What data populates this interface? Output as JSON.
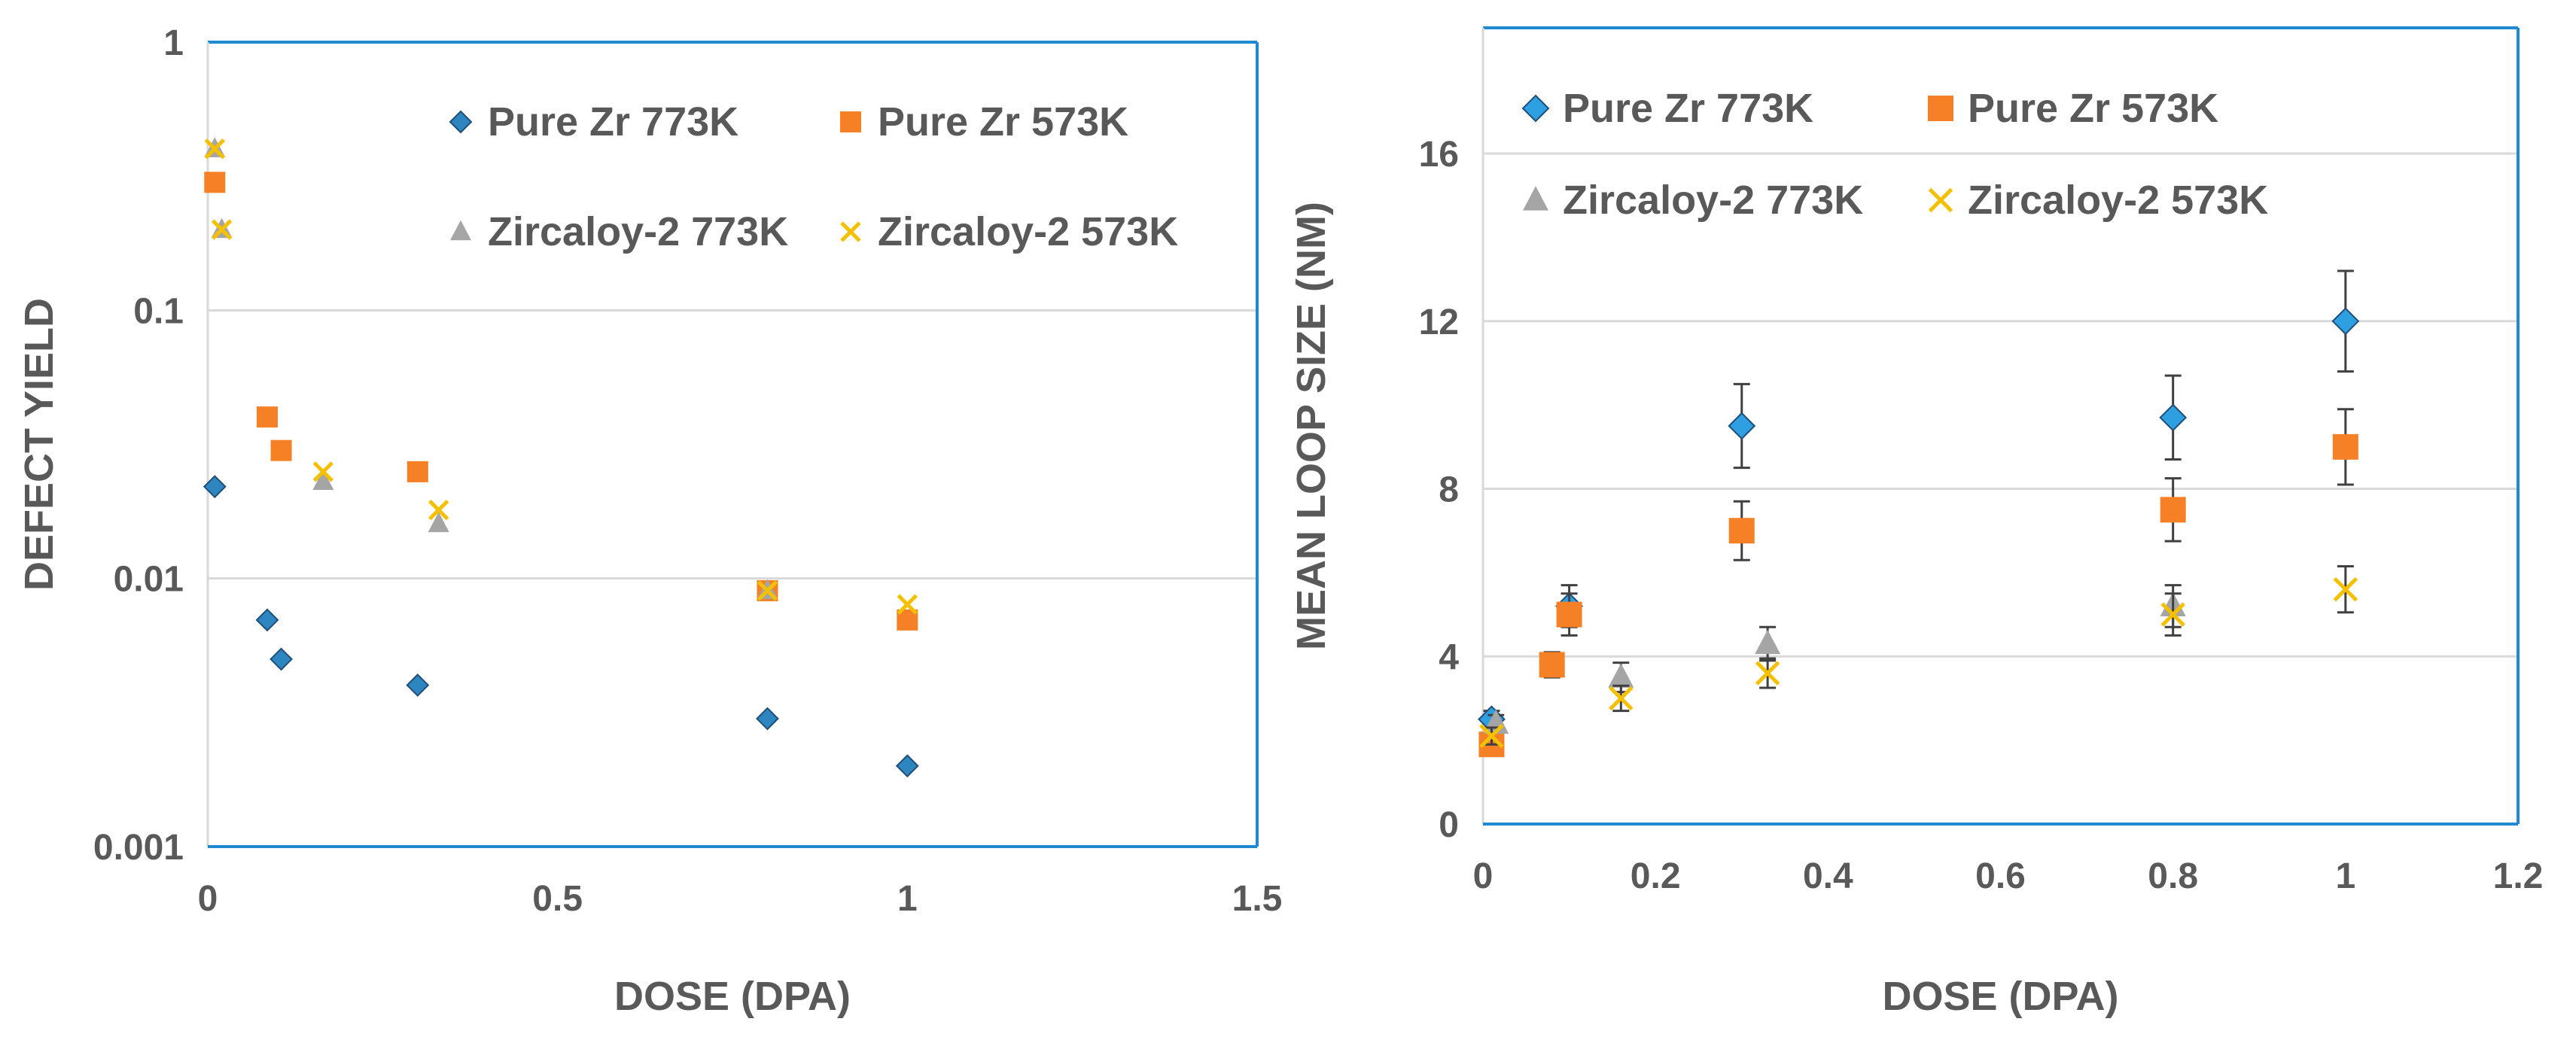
{
  "chart_data": [
    {
      "type": "scatter",
      "title": "",
      "xlabel": "DOSE (DPA)",
      "ylabel": "DEFECT YIELD",
      "yscale": "log",
      "xlim": [
        0,
        1.5
      ],
      "ylim": [
        0.001,
        1
      ],
      "xticks": [
        "0",
        "0.5",
        "1",
        "1.5"
      ],
      "yticks": [
        "1",
        "0.1",
        "0.01",
        "0.001"
      ],
      "grid": "horizontal",
      "legend": "top-right, 2 columns",
      "series": [
        {
          "name": "Pure Zr 773K",
          "marker": "diamond",
          "color": "#2E86C1",
          "points": [
            [
              0.01,
              0.022
            ],
            [
              0.085,
              0.007
            ],
            [
              0.105,
              0.005
            ],
            [
              0.3,
              0.004
            ],
            [
              0.8,
              0.003
            ],
            [
              1.0,
              0.002
            ]
          ]
        },
        {
          "name": "Pure Zr 573K",
          "marker": "square",
          "color": "#F58025",
          "points": [
            [
              0.01,
              0.3
            ],
            [
              0.085,
              0.04
            ],
            [
              0.105,
              0.03
            ],
            [
              0.3,
              0.025
            ],
            [
              0.8,
              0.009
            ],
            [
              1.0,
              0.007
            ]
          ]
        },
        {
          "name": "Zircaloy-2 773K",
          "marker": "triangle",
          "color": "#A5A5A5",
          "points": [
            [
              0.01,
              0.4
            ],
            [
              0.02,
              0.2
            ],
            [
              0.165,
              0.023
            ],
            [
              0.33,
              0.016
            ],
            [
              0.8,
              0.009
            ]
          ]
        },
        {
          "name": "Zircaloy-2 573K",
          "marker": "x",
          "color": "#F5C000",
          "points": [
            [
              0.01,
              0.4
            ],
            [
              0.02,
              0.2
            ],
            [
              0.165,
              0.025
            ],
            [
              0.33,
              0.018
            ],
            [
              0.8,
              0.009
            ],
            [
              1.0,
              0.008
            ]
          ]
        }
      ]
    },
    {
      "type": "scatter",
      "title": "",
      "xlabel": "DOSE (DPA)",
      "ylabel": "MEAN LOOP SIZE (NM)",
      "xlim": [
        0,
        1.2
      ],
      "ylim": [
        0,
        19
      ],
      "xticks": [
        "0",
        "0.2",
        "0.4",
        "0.6",
        "0.8",
        "1",
        "1.2"
      ],
      "yticks": [
        "0",
        "4",
        "8",
        "12",
        "16"
      ],
      "grid": "horizontal",
      "legend": "top-left, 2 columns",
      "series": [
        {
          "name": "Pure Zr 773K",
          "marker": "diamond",
          "color": "#2E9FE0",
          "points": [
            [
              0.01,
              2.5,
              0.2
            ],
            [
              0.1,
              5.2,
              0.5
            ],
            [
              0.3,
              9.5,
              1.0
            ],
            [
              0.8,
              9.7,
              1.0
            ],
            [
              1.0,
              12.0,
              1.2
            ]
          ]
        },
        {
          "name": "Pure Zr 573K",
          "marker": "square",
          "color": "#F58025",
          "points": [
            [
              0.01,
              1.9,
              0.2
            ],
            [
              0.08,
              3.8,
              0.3
            ],
            [
              0.1,
              5.0,
              0.5
            ],
            [
              0.3,
              7.0,
              0.7
            ],
            [
              0.8,
              7.5,
              0.75
            ],
            [
              1.0,
              9.0,
              0.9
            ]
          ]
        },
        {
          "name": "Zircaloy-2 773K",
          "marker": "triangle",
          "color": "#A5A5A5",
          "points": [
            [
              0.015,
              2.4,
              0.2
            ],
            [
              0.16,
              3.5,
              0.35
            ],
            [
              0.33,
              4.3,
              0.4
            ],
            [
              0.8,
              5.2,
              0.5
            ]
          ]
        },
        {
          "name": "Zircaloy-2 573K",
          "marker": "x",
          "color": "#F5C000",
          "points": [
            [
              0.01,
              2.1,
              0.2
            ],
            [
              0.16,
              3.0,
              0.3
            ],
            [
              0.33,
              3.6,
              0.35
            ],
            [
              0.8,
              5.0,
              0.5
            ],
            [
              1.0,
              5.6,
              0.55
            ]
          ]
        }
      ]
    }
  ]
}
